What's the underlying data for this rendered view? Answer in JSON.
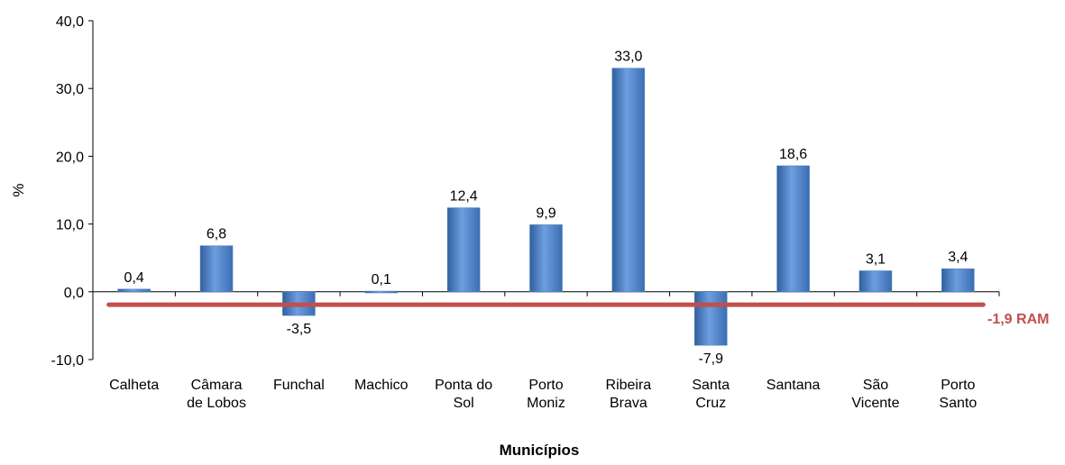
{
  "chart_data": {
    "type": "bar",
    "xlabel": "Municípios",
    "ylabel": "%",
    "ylim": [
      -10,
      40
    ],
    "yticks": [
      "-10,0",
      "0,0",
      "10,0",
      "20,0",
      "30,0",
      "40,0"
    ],
    "ytick_values": [
      -10,
      0,
      10,
      20,
      30,
      40
    ],
    "categories": [
      [
        "Calheta"
      ],
      [
        "Câmara",
        "de Lobos"
      ],
      [
        "Funchal"
      ],
      [
        "Machico"
      ],
      [
        "Ponta do",
        "Sol"
      ],
      [
        "Porto",
        "Moniz"
      ],
      [
        "Ribeira",
        "Brava"
      ],
      [
        "Santa",
        "Cruz"
      ],
      [
        "Santana"
      ],
      [
        "São",
        "Vicente"
      ],
      [
        "Porto",
        "Santo"
      ]
    ],
    "values": [
      0.4,
      6.8,
      -3.5,
      0.1,
      12.4,
      9.9,
      33.0,
      -7.9,
      18.6,
      3.1,
      3.4
    ],
    "value_labels": [
      "0,4",
      "6,8",
      "-3,5",
      "0,1",
      "12,4",
      "9,9",
      "33,0",
      "-7,9",
      "18,6",
      "3,1",
      "3,4"
    ],
    "reference_line": {
      "value": -1.9,
      "label": "-1,9 RAM",
      "color": "#c0504d"
    },
    "bar_color": "#4f81bd",
    "grid": false
  }
}
